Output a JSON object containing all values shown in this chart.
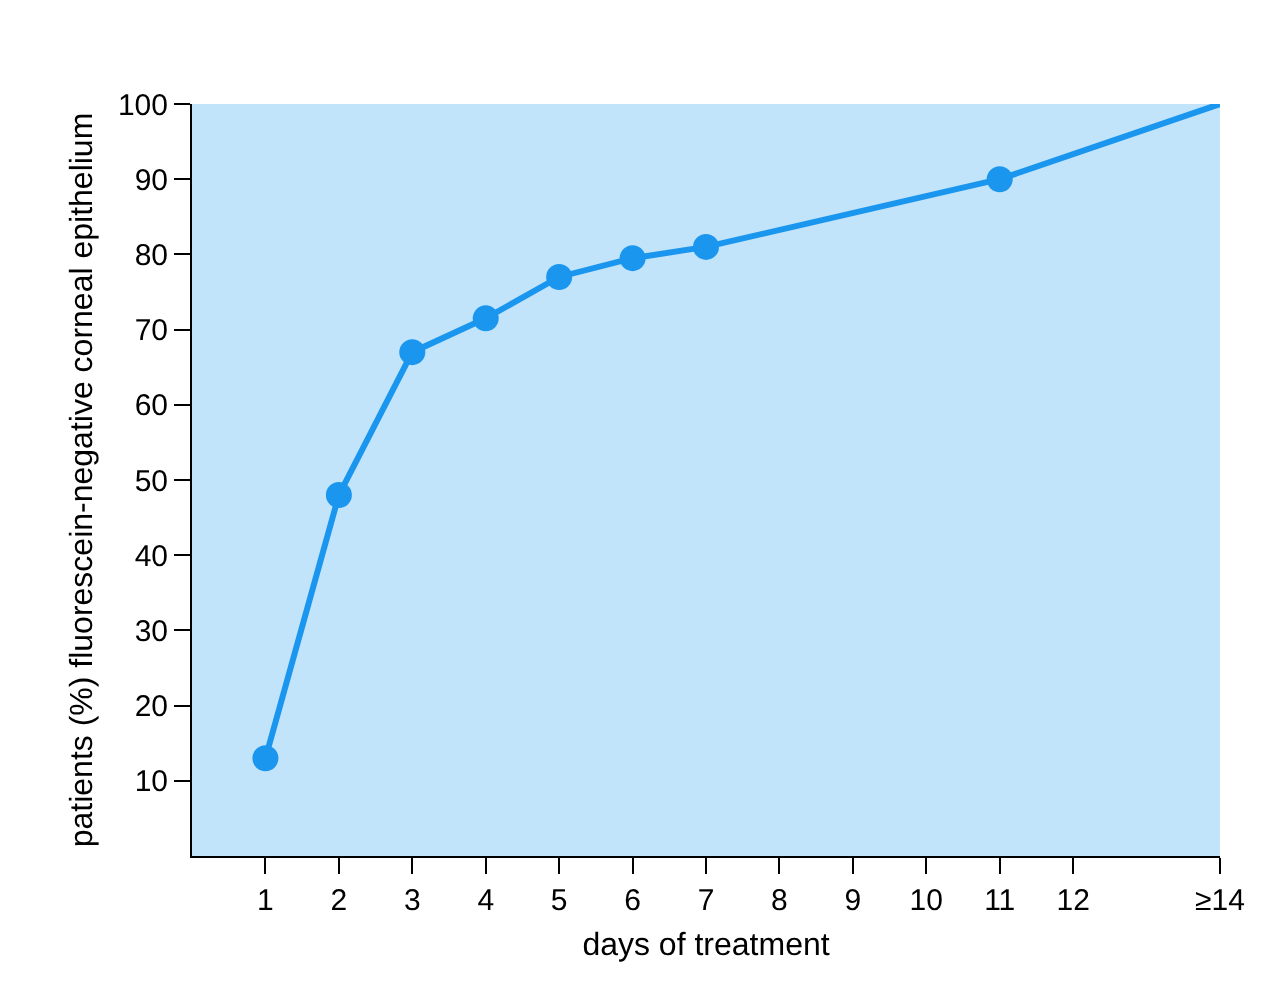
{
  "chart_data": {
    "type": "line",
    "xlabel": "days of treatment",
    "ylabel": "patients (%) fluorescein-negative corneal epithelium",
    "series": [
      {
        "color": "#1a96ee",
        "marker": "circle",
        "x": [
          1,
          2,
          3,
          4,
          5,
          6,
          7,
          11
        ],
        "values": [
          13,
          48,
          67,
          71.5,
          77,
          79.5,
          81,
          90
        ]
      },
      {
        "color": "#1a96ee",
        "marker": "none",
        "x": [
          11,
          14
        ],
        "values": [
          90,
          100
        ]
      }
    ],
    "xlim": [
      0,
      14
    ],
    "xticks": [
      1,
      2,
      3,
      4,
      5,
      6,
      7,
      8,
      9,
      10,
      11,
      12,
      {
        "value": 14,
        "label": "≥14"
      }
    ],
    "ylim": [
      0,
      100
    ],
    "yticks": [
      10,
      20,
      30,
      40,
      50,
      60,
      70,
      80,
      90,
      100
    ],
    "grid": false,
    "line_style": "solid"
  }
}
